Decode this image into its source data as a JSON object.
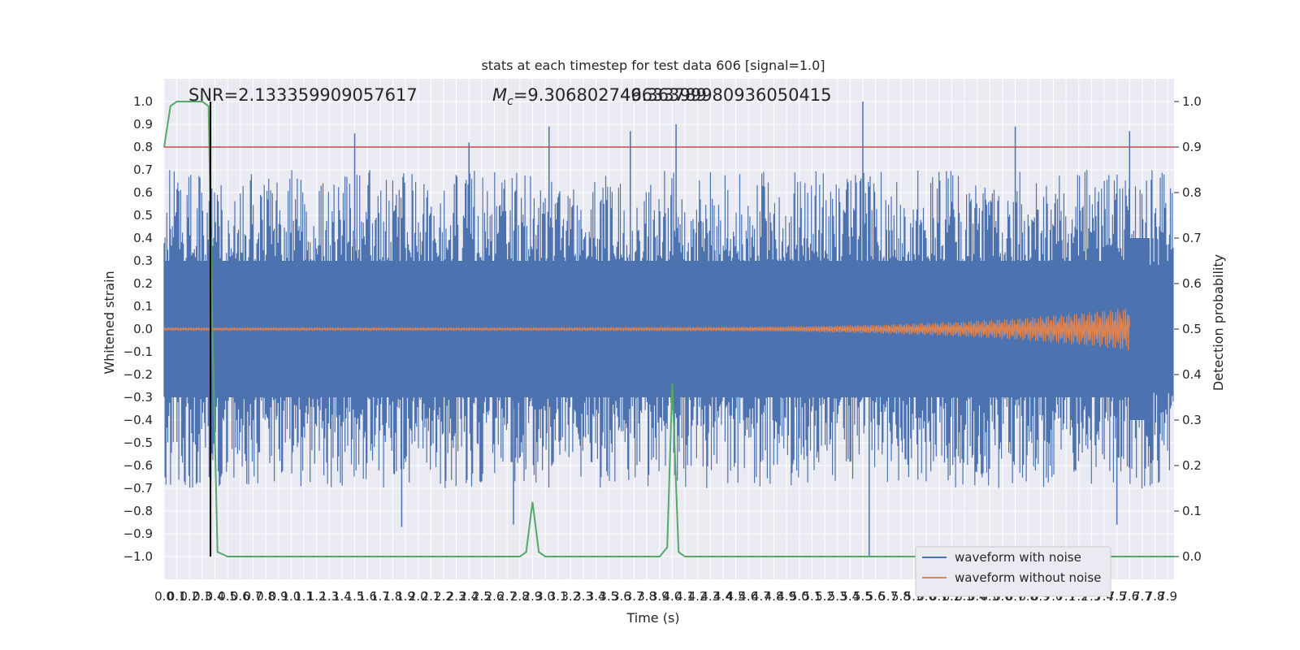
{
  "chart_data": {
    "type": "line",
    "title": "stats at each timestep for test data 606 [signal=1.0]",
    "xlabel": "Time (s)",
    "ylabel": "Whitened strain",
    "y2label": "Detection probability",
    "xlim": [
      0.0,
      7.95
    ],
    "ylim": [
      -1.1,
      1.1
    ],
    "y2lim": [
      -0.05,
      1.05
    ],
    "grid": true,
    "background_color": "#eaeaf2",
    "x_tick_labels": [
      "0.0",
      "0.1",
      "0.2",
      "0.3",
      "0.4",
      "0.5",
      "0.6",
      "0.7",
      "0.8",
      "0.9",
      "1.0",
      "1.1",
      "1.2",
      "1.3",
      "1.4",
      "1.5",
      "1.6",
      "1.7",
      "1.8",
      "1.9",
      "2.0",
      "2.1",
      "2.2",
      "2.3",
      "2.4",
      "2.5",
      "2.6",
      "2.7",
      "2.8",
      "2.9",
      "3.0",
      "3.1",
      "3.2",
      "3.3",
      "3.4",
      "3.5",
      "3.6",
      "3.7",
      "3.8",
      "3.9",
      "4.0",
      "4.1",
      "4.2",
      "4.3",
      "4.4",
      "4.5",
      "4.6",
      "4.7",
      "4.8",
      "4.9",
      "5.0",
      "5.1",
      "5.2",
      "5.3",
      "5.4",
      "5.5",
      "5.6",
      "5.7",
      "5.8",
      "5.9",
      "6.0",
      "6.1",
      "6.2",
      "6.3",
      "6.4",
      "6.5",
      "6.6",
      "6.7",
      "6.8",
      "6.9",
      "7.0",
      "7.1",
      "7.2",
      "7.3",
      "7.4",
      "7.5",
      "7.6",
      "7.7",
      "7.8",
      "7.9"
    ],
    "y_tick_labels": [
      "1.0",
      "0.9",
      "0.8",
      "0.7",
      "0.6",
      "0.5",
      "0.4",
      "0.3",
      "0.2",
      "0.1",
      "0.0",
      "−0.1",
      "−0.2",
      "−0.3",
      "−0.4",
      "−0.5",
      "−0.6",
      "−0.7",
      "−0.8",
      "−0.9",
      "−1.0"
    ],
    "y2_tick_labels": [
      "1.0",
      "0.9",
      "0.8",
      "0.7",
      "0.6",
      "0.5",
      "0.4",
      "0.3",
      "0.2",
      "0.1",
      "0.0"
    ],
    "annotations": {
      "snr": "SNR=2.133359909057617",
      "mc_prefix": "M",
      "mc_sub": "c",
      "mc_value": "=9.306802749633789",
      "overlap_value": "46.36399980936050415"
    },
    "series": [
      {
        "name": "waveform with noise",
        "color": "#4c72b0",
        "note_range": [
          -1.0,
          1.0
        ],
        "envelope_x": [
          0.0,
          1.0,
          2.0,
          3.0,
          4.0,
          5.0,
          6.0,
          7.0,
          7.95
        ],
        "envelope_upper": [
          0.45,
          0.45,
          0.45,
          0.45,
          0.45,
          0.45,
          0.45,
          0.45,
          0.45
        ],
        "envelope_lower": [
          -0.45,
          -0.45,
          -0.45,
          -0.45,
          -0.45,
          -0.45,
          -0.45,
          -0.45,
          -0.45
        ],
        "peaks": [
          {
            "x": 1.5,
            "y": 0.86
          },
          {
            "x": 2.4,
            "y": 0.82
          },
          {
            "x": 3.03,
            "y": 0.89
          },
          {
            "x": 3.67,
            "y": 0.87
          },
          {
            "x": 4.03,
            "y": 0.9
          },
          {
            "x": 5.5,
            "y": 1.0
          },
          {
            "x": 6.7,
            "y": 0.89
          },
          {
            "x": 7.6,
            "y": 0.87
          },
          {
            "x": 5.55,
            "y": -1.0
          },
          {
            "x": 2.75,
            "y": -0.86
          },
          {
            "x": 1.87,
            "y": -0.87
          },
          {
            "x": 7.5,
            "y": -0.86
          }
        ]
      },
      {
        "name": "waveform without noise",
        "color": "#dd8452",
        "chirp_end_x": 7.6,
        "chirp_max_amplitude": 0.09
      },
      {
        "name": "",
        "color": "#55a868",
        "axis": "right",
        "x": [
          0.0,
          0.05,
          0.1,
          0.15,
          0.2,
          0.25,
          0.3,
          0.35,
          0.38,
          0.42,
          0.5,
          2.8,
          2.85,
          2.9,
          2.95,
          3.0,
          3.9,
          3.96,
          4.0,
          4.05,
          4.1,
          7.95
        ],
        "values": [
          0.9,
          0.99,
          1.0,
          1.0,
          1.0,
          1.0,
          1.0,
          0.99,
          0.5,
          0.01,
          0.0,
          0.0,
          0.01,
          0.12,
          0.01,
          0.0,
          0.0,
          0.02,
          0.38,
          0.01,
          0.0,
          0.0
        ]
      }
    ],
    "threshold_line": {
      "y": 0.8,
      "color": "#c44e52"
    },
    "vertical_marker": {
      "x": 0.365,
      "y_from": -1.0,
      "y_to": 1.0,
      "color": "#000000"
    },
    "legend": {
      "position": "lower-right"
    }
  }
}
